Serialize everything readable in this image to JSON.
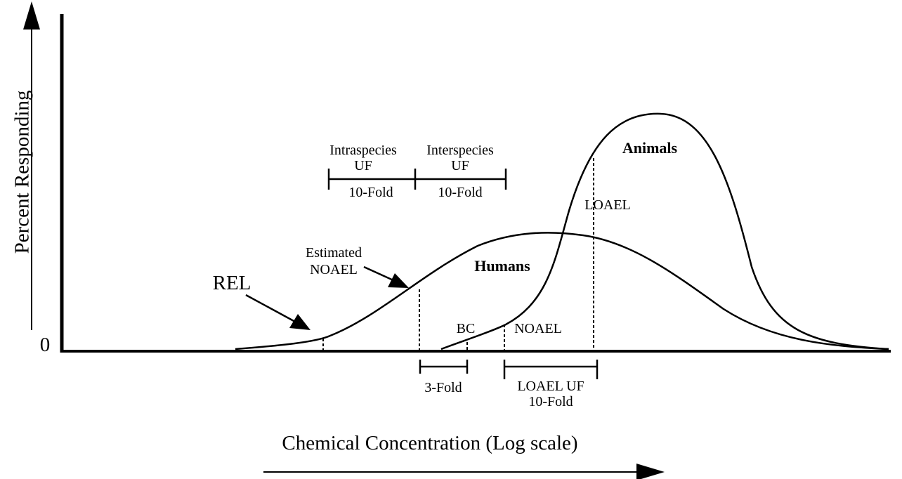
{
  "axes": {
    "y_label": "Percent Responding",
    "origin": "0",
    "x_label": "Chemical Concentration (Log scale)"
  },
  "curves": {
    "humans": "Humans",
    "animals": "Animals"
  },
  "points": {
    "rel": "REL",
    "estimated_noael": [
      "Estimated",
      "NOAEL"
    ],
    "bc": "BC",
    "noael": "NOAEL",
    "loael": "LOAEL"
  },
  "factors": {
    "intraspecies": {
      "label": [
        "Intraspecies",
        "UF"
      ],
      "fold": "10-Fold"
    },
    "interspecies": {
      "label": [
        "Interspecies",
        "UF"
      ],
      "fold": "10-Fold"
    },
    "bc": {
      "fold": "3-Fold"
    },
    "loael": {
      "label": "LOAEL UF",
      "fold": "10-Fold"
    }
  }
}
